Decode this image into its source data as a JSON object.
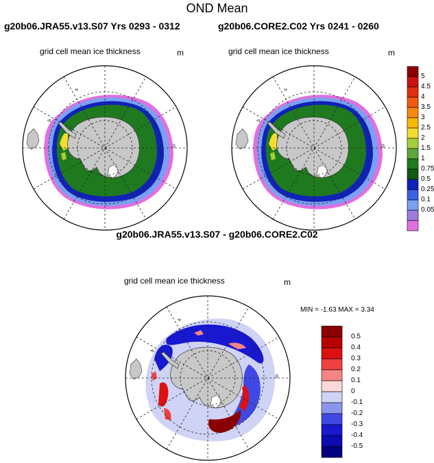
{
  "title": "OND Mean",
  "panels": {
    "left_run": "g20b06.JRA55.v13.S07  Yrs 0293 - 0312",
    "right_run": "g20b06.CORE2.C02  Yrs 0241 - 0260",
    "variable": "grid cell mean ice thickness",
    "unit": "m"
  },
  "diff": {
    "title": "g20b06.JRA55.v13.S07 - g20b06.CORE2.C02",
    "variable": "grid cell mean ice thickness",
    "unit": "m",
    "minmax": "MIN =  -1.63 MAX =   3.34"
  },
  "colorbar_top": {
    "labels": [
      "5",
      "4.5",
      "4",
      "3.5",
      "3",
      "2.5",
      "2",
      "1.5",
      "1",
      "0.75",
      "0.5",
      "0.25",
      "0.1",
      "0.05"
    ],
    "colors": [
      "#8b0000",
      "#cc1111",
      "#e03010",
      "#f05a10",
      "#f58a10",
      "#f7b800",
      "#f5dc30",
      "#a6cd3a",
      "#5ca838",
      "#1f7a1f",
      "#0f5a14",
      "#1022b8",
      "#3b62e0",
      "#7aa0f2",
      "#9c7cdc",
      "#e070e0"
    ]
  },
  "colorbar_diff": {
    "labels": [
      "0.5",
      "0.4",
      "0.3",
      "0.2",
      "0.1",
      "0",
      "-0.1",
      "-0.2",
      "-0.3",
      "-0.4",
      "-0.5"
    ],
    "colors": [
      "#8b0000",
      "#b80000",
      "#dd1010",
      "#f04040",
      "#f58585",
      "#fbd9d9",
      "#cfd3f5",
      "#8c95ee",
      "#4048e4",
      "#1818d0",
      "#0b0bb0",
      "#000080"
    ]
  }
}
